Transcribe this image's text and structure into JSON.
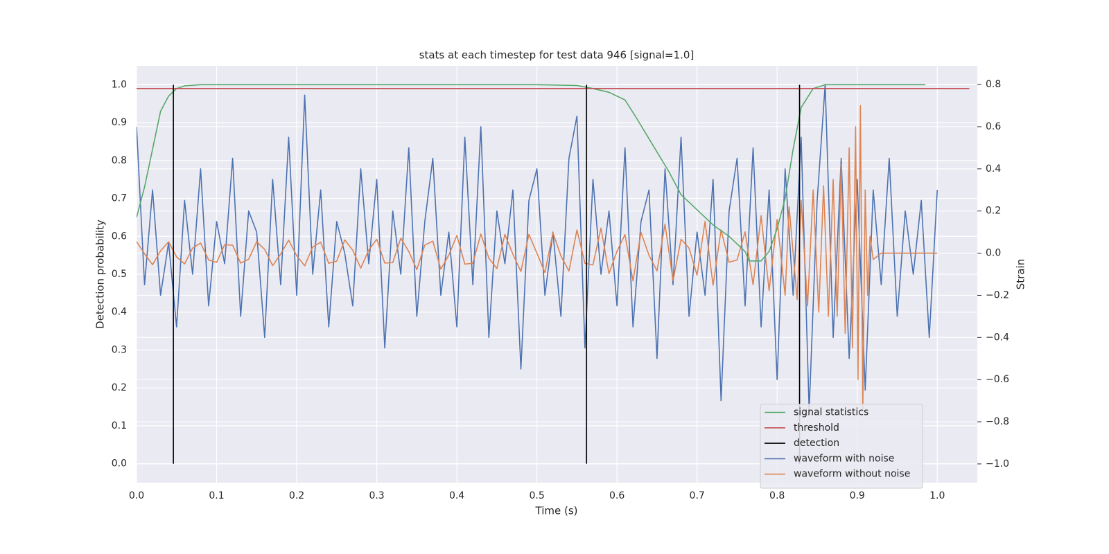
{
  "chart_data": {
    "type": "line",
    "title": "stats at each timestep for test data 946 [signal=1.0]",
    "x_label": "Time (s)",
    "y_label": "Detection probability",
    "y2_label": "Strain",
    "xlim": [
      0,
      1.05
    ],
    "ylim": [
      -0.05,
      1.05
    ],
    "y2lim": [
      -1.089,
      0.889
    ],
    "xticks": [
      {
        "value": 0,
        "label": "0.0"
      },
      0.1,
      0.2,
      0.3,
      0.4,
      0.5,
      0.6,
      0.7,
      0.8,
      0.9,
      {
        "value": 1,
        "label": "1.0"
      }
    ],
    "yticks": [
      {
        "value": 0,
        "label": "0.0"
      },
      0.1,
      0.2,
      0.3,
      0.4,
      0.5,
      0.6,
      0.7,
      0.8,
      0.9,
      {
        "value": 1,
        "label": "1.0"
      }
    ],
    "y2ticks": [
      {
        "value": -1,
        "label": "−1.0"
      },
      {
        "value": -0.8,
        "label": "−0.8"
      },
      {
        "value": -0.6,
        "label": "−0.6"
      },
      {
        "value": -0.4,
        "label": "−0.4"
      },
      {
        "value": -0.2,
        "label": "−0.2"
      },
      {
        "value": 0,
        "label": "0.0"
      },
      0.2,
      0.4,
      0.6,
      0.8
    ],
    "grid": true,
    "legend": "lower right",
    "series": [
      {
        "name": "waveform with noise",
        "color": "#4c72b0",
        "axis": "y2",
        "x": [
          0,
          0.01,
          0.02,
          0.03,
          0.04,
          0.05,
          0.06,
          0.07,
          0.08,
          0.09,
          0.1,
          0.11,
          0.12,
          0.13,
          0.14,
          0.15,
          0.16,
          0.17,
          0.18,
          0.19,
          0.2,
          0.21,
          0.22,
          0.23,
          0.24,
          0.25,
          0.26,
          0.27,
          0.28,
          0.29,
          0.3,
          0.31,
          0.32,
          0.33,
          0.34,
          0.35,
          0.36,
          0.37,
          0.38,
          0.39,
          0.4,
          0.41,
          0.42,
          0.43,
          0.44,
          0.45,
          0.46,
          0.47,
          0.48,
          0.49,
          0.5,
          0.51,
          0.52,
          0.53,
          0.54,
          0.55,
          0.56,
          0.57,
          0.58,
          0.59,
          0.6,
          0.61,
          0.62,
          0.63,
          0.64,
          0.65,
          0.66,
          0.67,
          0.68,
          0.69,
          0.7,
          0.71,
          0.72,
          0.73,
          0.74,
          0.75,
          0.76,
          0.77,
          0.78,
          0.79,
          0.8,
          0.81,
          0.82,
          0.83,
          0.84,
          0.85,
          0.86,
          0.87,
          0.88,
          0.89,
          0.9,
          0.91,
          0.92,
          0.93,
          0.94,
          0.95,
          0.96,
          0.97,
          0.98,
          0.99,
          1.0
        ],
        "values": [
          0.6,
          -0.15,
          0.3,
          -0.2,
          0.05,
          -0.35,
          0.25,
          -0.1,
          0.4,
          -0.25,
          0.15,
          -0.05,
          0.45,
          -0.3,
          0.2,
          0.1,
          -0.4,
          0.35,
          -0.15,
          0.55,
          -0.2,
          0.75,
          -0.1,
          0.3,
          -0.35,
          0.15,
          0.0,
          -0.25,
          0.4,
          -0.05,
          0.35,
          -0.45,
          0.2,
          -0.1,
          0.5,
          -0.3,
          0.15,
          0.45,
          -0.2,
          0.1,
          -0.35,
          0.55,
          -0.15,
          0.6,
          -0.4,
          0.2,
          -0.05,
          0.3,
          -0.55,
          0.25,
          0.4,
          -0.2,
          0.1,
          -0.3,
          0.45,
          0.65,
          -0.45,
          0.35,
          -0.1,
          0.2,
          -0.25,
          0.5,
          -0.35,
          0.15,
          0.3,
          -0.5,
          0.4,
          -0.15,
          0.55,
          -0.3,
          0.1,
          -0.2,
          0.35,
          -0.7,
          0.2,
          0.45,
          -0.25,
          0.5,
          -0.35,
          0.3,
          -0.6,
          0.4,
          -0.2,
          0.55,
          -0.75,
          0.25,
          0.8,
          -0.4,
          0.45,
          -0.5,
          0.35,
          -0.65,
          0.3,
          -0.15,
          0.45,
          -0.3,
          0.2,
          -0.1,
          0.25,
          -0.4,
          0.3
        ]
      },
      {
        "name": "waveform without noise",
        "color": "#dd8452",
        "axis": "y2",
        "x": [
          0,
          0.01,
          0.02,
          0.03,
          0.04,
          0.05,
          0.06,
          0.07,
          0.08,
          0.09,
          0.1,
          0.11,
          0.12,
          0.13,
          0.14,
          0.15,
          0.16,
          0.17,
          0.18,
          0.19,
          0.2,
          0.21,
          0.22,
          0.23,
          0.24,
          0.25,
          0.26,
          0.27,
          0.28,
          0.29,
          0.3,
          0.31,
          0.32,
          0.33,
          0.34,
          0.35,
          0.36,
          0.37,
          0.38,
          0.39,
          0.4,
          0.41,
          0.42,
          0.43,
          0.44,
          0.45,
          0.46,
          0.47,
          0.48,
          0.49,
          0.5,
          0.51,
          0.52,
          0.53,
          0.54,
          0.55,
          0.56,
          0.57,
          0.58,
          0.59,
          0.6,
          0.61,
          0.62,
          0.63,
          0.64,
          0.65,
          0.66,
          0.67,
          0.68,
          0.69,
          0.7,
          0.71,
          0.72,
          0.73,
          0.74,
          0.75,
          0.76,
          0.77,
          0.78,
          0.79,
          0.8,
          0.81,
          0.815,
          0.825,
          0.83,
          0.838,
          0.845,
          0.852,
          0.858,
          0.864,
          0.87,
          0.875,
          0.88,
          0.885,
          0.89,
          0.894,
          0.898,
          0.901,
          0.904,
          0.907,
          0.91,
          0.913,
          0.916,
          0.92,
          0.93,
          1.0
        ],
        "values": [
          0.055,
          -0.003,
          -0.055,
          0.011,
          0.054,
          -0.018,
          -0.051,
          0.024,
          0.048,
          -0.032,
          -0.044,
          0.04,
          0.038,
          -0.047,
          -0.029,
          0.054,
          0.018,
          -0.059,
          -0.004,
          0.062,
          -0.012,
          -0.06,
          0.029,
          0.052,
          -0.048,
          -0.038,
          0.063,
          0.014,
          -0.071,
          0.015,
          0.066,
          -0.047,
          -0.045,
          0.071,
          0.008,
          -0.078,
          0.038,
          0.057,
          -0.076,
          -0.009,
          0.084,
          -0.052,
          -0.048,
          0.091,
          -0.024,
          -0.073,
          0.089,
          -0.005,
          -0.087,
          0.089,
          0,
          -0.092,
          0.097,
          -0.013,
          -0.085,
          0.11,
          -0.048,
          -0.056,
          0.119,
          -0.097,
          0.009,
          0.088,
          -0.132,
          0.098,
          -0.01,
          -0.084,
          0.138,
          -0.13,
          0.066,
          0.024,
          -0.104,
          0.151,
          -0.152,
          0.11,
          -0.043,
          -0.032,
          0.101,
          -0.15,
          0.178,
          -0.178,
          0.16,
          -0.2,
          0.22,
          -0.22,
          0.25,
          -0.25,
          0.3,
          -0.28,
          0.32,
          -0.3,
          0.35,
          -0.3,
          0.42,
          -0.38,
          0.5,
          -0.45,
          0.6,
          -0.6,
          0.7,
          -0.75,
          0.3,
          -0.2,
          0.08,
          -0.03,
          0.0,
          0.0
        ]
      },
      {
        "name": "signal statistics",
        "color": "#55a868",
        "x": [
          0,
          0.01,
          0.02,
          0.03,
          0.04,
          0.05,
          0.06,
          0.08,
          0.5,
          0.55,
          0.57,
          0.59,
          0.61,
          0.625,
          0.645,
          0.665,
          0.68,
          0.7,
          0.72,
          0.74,
          0.76,
          0.765,
          0.78,
          0.79,
          0.8,
          0.81,
          0.82,
          0.83,
          0.845,
          0.86,
          0.985
        ],
        "values": [
          0.65,
          0.73,
          0.83,
          0.93,
          0.97,
          0.99,
          0.997,
          1.0,
          1.0,
          0.998,
          0.99,
          0.98,
          0.96,
          0.91,
          0.84,
          0.77,
          0.71,
          0.67,
          0.63,
          0.6,
          0.56,
          0.535,
          0.535,
          0.56,
          0.62,
          0.7,
          0.83,
          0.94,
          0.99,
          1.0,
          1.0
        ]
      },
      {
        "name": "threshold",
        "color": "#c44e52",
        "x": [
          0,
          1.04
        ],
        "values": [
          0.99,
          0.99
        ]
      },
      {
        "name": "detection",
        "color": "#000000",
        "x": [
          0.046,
          0.046,
          0.046,
          0.562,
          0.562,
          0.562,
          0.828,
          0.828
        ],
        "values": [
          0,
          1,
          null,
          0,
          1,
          null,
          0,
          1
        ]
      }
    ]
  }
}
